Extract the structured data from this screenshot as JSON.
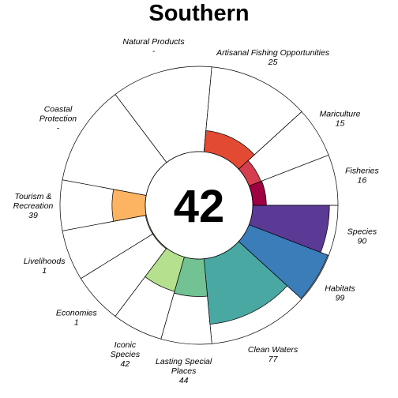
{
  "chart_data": {
    "type": "rose",
    "title": "Southern",
    "center_score": "42",
    "max_value": 100,
    "segments": [
      {
        "label_lines": [
          "Species"
        ],
        "value_text": "90",
        "value": 90,
        "weight": 1,
        "color": "#5a3a94"
      },
      {
        "label_lines": [
          "Habitats"
        ],
        "value_text": "99",
        "value": 99,
        "weight": 1,
        "color": "#3a7db8"
      },
      {
        "label_lines": [
          "Clean Waters"
        ],
        "value_text": "77",
        "value": 77,
        "weight": 2,
        "color": "#4aa8a2"
      },
      {
        "label_lines": [
          "Lasting Special",
          "Places"
        ],
        "value_text": "44",
        "value": 44,
        "weight": 1,
        "color": "#72c293"
      },
      {
        "label_lines": [
          "Iconic",
          "Species"
        ],
        "value_text": "42",
        "value": 42,
        "weight": 1,
        "color": "#b5e08e"
      },
      {
        "label_lines": [
          "Economies"
        ],
        "value_text": "1",
        "value": 1,
        "weight": 1,
        "color": "#e6f598"
      },
      {
        "label_lines": [
          "Livelihoods"
        ],
        "value_text": "1",
        "value": 1,
        "weight": 1,
        "color": "#fee08b"
      },
      {
        "label_lines": [
          "Tourism &",
          "Recreation"
        ],
        "value_text": "39",
        "value": 39,
        "weight": 1,
        "color": "#fdb462"
      },
      {
        "label_lines": [
          "Coastal",
          "Protection"
        ],
        "value_text": "-",
        "value": 0,
        "weight": 2,
        "color": "#f46d43"
      },
      {
        "label_lines": [
          "Natural Products"
        ],
        "value_text": "-",
        "value": 0,
        "weight": 2,
        "color": "#f08050"
      },
      {
        "label_lines": [
          "Artisanal Fishing Opportunities"
        ],
        "value_text": "25",
        "value": 25,
        "weight": 2,
        "color": "#e34a33"
      },
      {
        "label_lines": [
          "Mariculture"
        ],
        "value_text": "15",
        "value": 15,
        "weight": 1,
        "color": "#d53e4f"
      },
      {
        "label_lines": [
          "Fisheries"
        ],
        "value_text": "16",
        "value": 16,
        "weight": 1,
        "color": "#9e0142"
      }
    ]
  }
}
